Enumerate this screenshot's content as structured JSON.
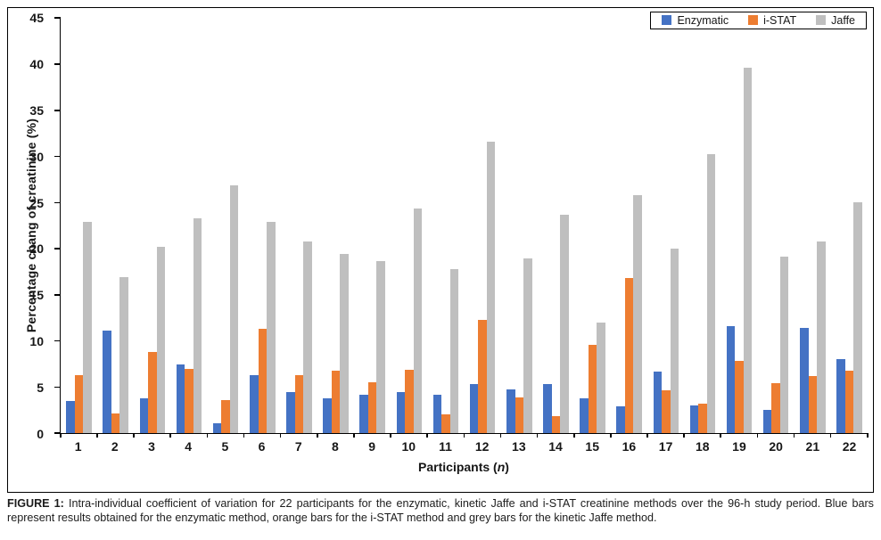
{
  "figure": {
    "caption_label": "FIGURE 1:",
    "caption_text": " Intra-individual coefficient of variation for 22 participants for the enzymatic, kinetic Jaffe and i-STAT creatinine methods over the 96-h study period. Blue bars represent results obtained for the enzymatic method, orange bars for the i-STAT method and grey bars for the kinetic Jaffe method."
  },
  "chart_data": {
    "type": "bar",
    "title": "",
    "ylabel": "Percentage chang of creatinine (%)",
    "xlabel_parts": {
      "pre": "Participants (",
      "italic": "n",
      "post": ")"
    },
    "ylim": [
      0,
      45
    ],
    "yticks": [
      0,
      5,
      10,
      15,
      20,
      25,
      30,
      35,
      40,
      45
    ],
    "grid": false,
    "legend_position": "top-right",
    "categories": [
      "1",
      "2",
      "3",
      "4",
      "5",
      "6",
      "7",
      "8",
      "9",
      "10",
      "11",
      "12",
      "13",
      "14",
      "15",
      "16",
      "17",
      "18",
      "19",
      "20",
      "21",
      "22"
    ],
    "series": [
      {
        "name": "Enzymatic",
        "color": "#4472c4",
        "values": [
          3.5,
          11.1,
          3.8,
          7.4,
          1.1,
          6.3,
          4.4,
          3.8,
          4.2,
          4.4,
          4.2,
          5.3,
          4.7,
          5.3,
          3.8,
          2.9,
          6.7,
          3.0,
          11.6,
          2.5,
          11.4,
          8.0
        ]
      },
      {
        "name": "i-STAT",
        "color": "#ed7d31",
        "values": [
          6.3,
          2.1,
          8.8,
          7.0,
          3.6,
          11.3,
          6.3,
          6.8,
          5.5,
          6.9,
          2.0,
          12.3,
          3.9,
          1.8,
          9.6,
          16.8,
          4.6,
          3.2,
          7.8,
          5.4,
          6.2,
          6.8
        ]
      },
      {
        "name": "Jaffe",
        "color": "#bfbfbf",
        "values": [
          22.9,
          16.9,
          20.2,
          23.3,
          26.8,
          22.9,
          20.8,
          19.4,
          18.6,
          24.3,
          17.8,
          31.6,
          18.9,
          23.7,
          12.0,
          25.8,
          20.0,
          30.2,
          39.6,
          19.1,
          20.8,
          25.0
        ]
      }
    ]
  }
}
